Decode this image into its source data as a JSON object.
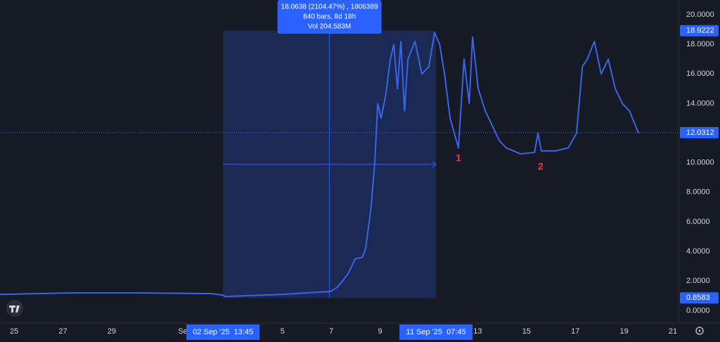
{
  "chart_data": {
    "type": "line",
    "x": [
      -0.58,
      2.31,
      5.19,
      8.07,
      8.56,
      8.65,
      10.95,
      12.97,
      13.26,
      13.69,
      13.98,
      14.27,
      14.41,
      14.63,
      14.78,
      14.9,
      15.04,
      15.22,
      15.42,
      15.56,
      15.71,
      15.85,
      16.0,
      16.14,
      16.43,
      16.71,
      17.0,
      17.23,
      17.44,
      17.64,
      17.87,
      18.21,
      18.44,
      18.65,
      18.79,
      19.02,
      19.31,
      19.6,
      19.88,
      20.17,
      20.75,
      21.33,
      21.47,
      21.61,
      22.19,
      22.71,
      23.05,
      23.29,
      23.49,
      23.78,
      24.06,
      24.35,
      24.64,
      24.93,
      25.22,
      25.59
    ],
    "series": [
      {
        "color": "#3b63e8",
        "values": [
          1.1,
          1.2,
          1.2,
          1.15,
          1.05,
          0.95,
          1.1,
          1.3,
          1.6,
          2.5,
          3.5,
          3.6,
          4.2,
          7,
          10,
          14,
          13,
          14.5,
          17,
          18,
          15,
          18.2,
          13.5,
          17,
          18.2,
          16,
          16.5,
          18.8,
          18,
          16,
          13,
          11,
          17,
          14,
          18.5,
          15,
          13.5,
          12.5,
          11.5,
          11,
          10.6,
          10.7,
          12,
          10.8,
          10.8,
          11,
          12,
          16.5,
          17,
          18.2,
          16,
          17,
          15,
          14,
          13.5,
          12
        ]
      }
    ],
    "xlim": [
      -0.58,
      27.23
    ],
    "ylim": [
      -0.6,
      21
    ],
    "xticks": [
      {
        "value": 0,
        "label": "25"
      },
      {
        "value": 2,
        "label": "27"
      },
      {
        "value": 4,
        "label": "29"
      },
      {
        "value": 7,
        "label": "Sep"
      },
      {
        "value": 11,
        "label": "5"
      },
      {
        "value": 13,
        "label": "7"
      },
      {
        "value": 15,
        "label": "9"
      },
      {
        "value": 19,
        "label": "13"
      },
      {
        "value": 21,
        "label": "15"
      },
      {
        "value": 23,
        "label": "17"
      },
      {
        "value": 25,
        "label": "19"
      },
      {
        "value": 27,
        "label": "21"
      }
    ],
    "yticks": [
      {
        "value": 0,
        "label": "0.0000"
      },
      {
        "value": 2,
        "label": "2.0000"
      },
      {
        "value": 4,
        "label": "4.0000"
      },
      {
        "value": 6,
        "label": "6.0000"
      },
      {
        "value": 8,
        "label": "8.0000"
      },
      {
        "value": 10,
        "label": "10.0000"
      },
      {
        "value": 14,
        "label": "14.0000"
      },
      {
        "value": 16,
        "label": "16.0000"
      },
      {
        "value": 18,
        "label": "18.0000"
      },
      {
        "value": 20,
        "label": "20.0000"
      }
    ],
    "price_labels": [
      {
        "value": 18.9222,
        "label": "18.9222"
      },
      {
        "value": 12.0312,
        "label": "12.0312"
      },
      {
        "value": 0.8583,
        "label": "0.8583"
      }
    ],
    "range": {
      "x": [
        8.56,
        17.29
      ],
      "start_label": "02 Sep '25  13:45",
      "end_label": "11 Sep '25  07:45",
      "info": [
        "18.0638 (2104.47%) , 1806389",
        "840 bars, 8d 18h",
        "Vol 204.583M"
      ]
    },
    "annotations": [
      {
        "text": "1",
        "x": 18.21,
        "y": 10.27
      },
      {
        "text": "2",
        "x": 21.58,
        "y": 9.7
      }
    ]
  }
}
